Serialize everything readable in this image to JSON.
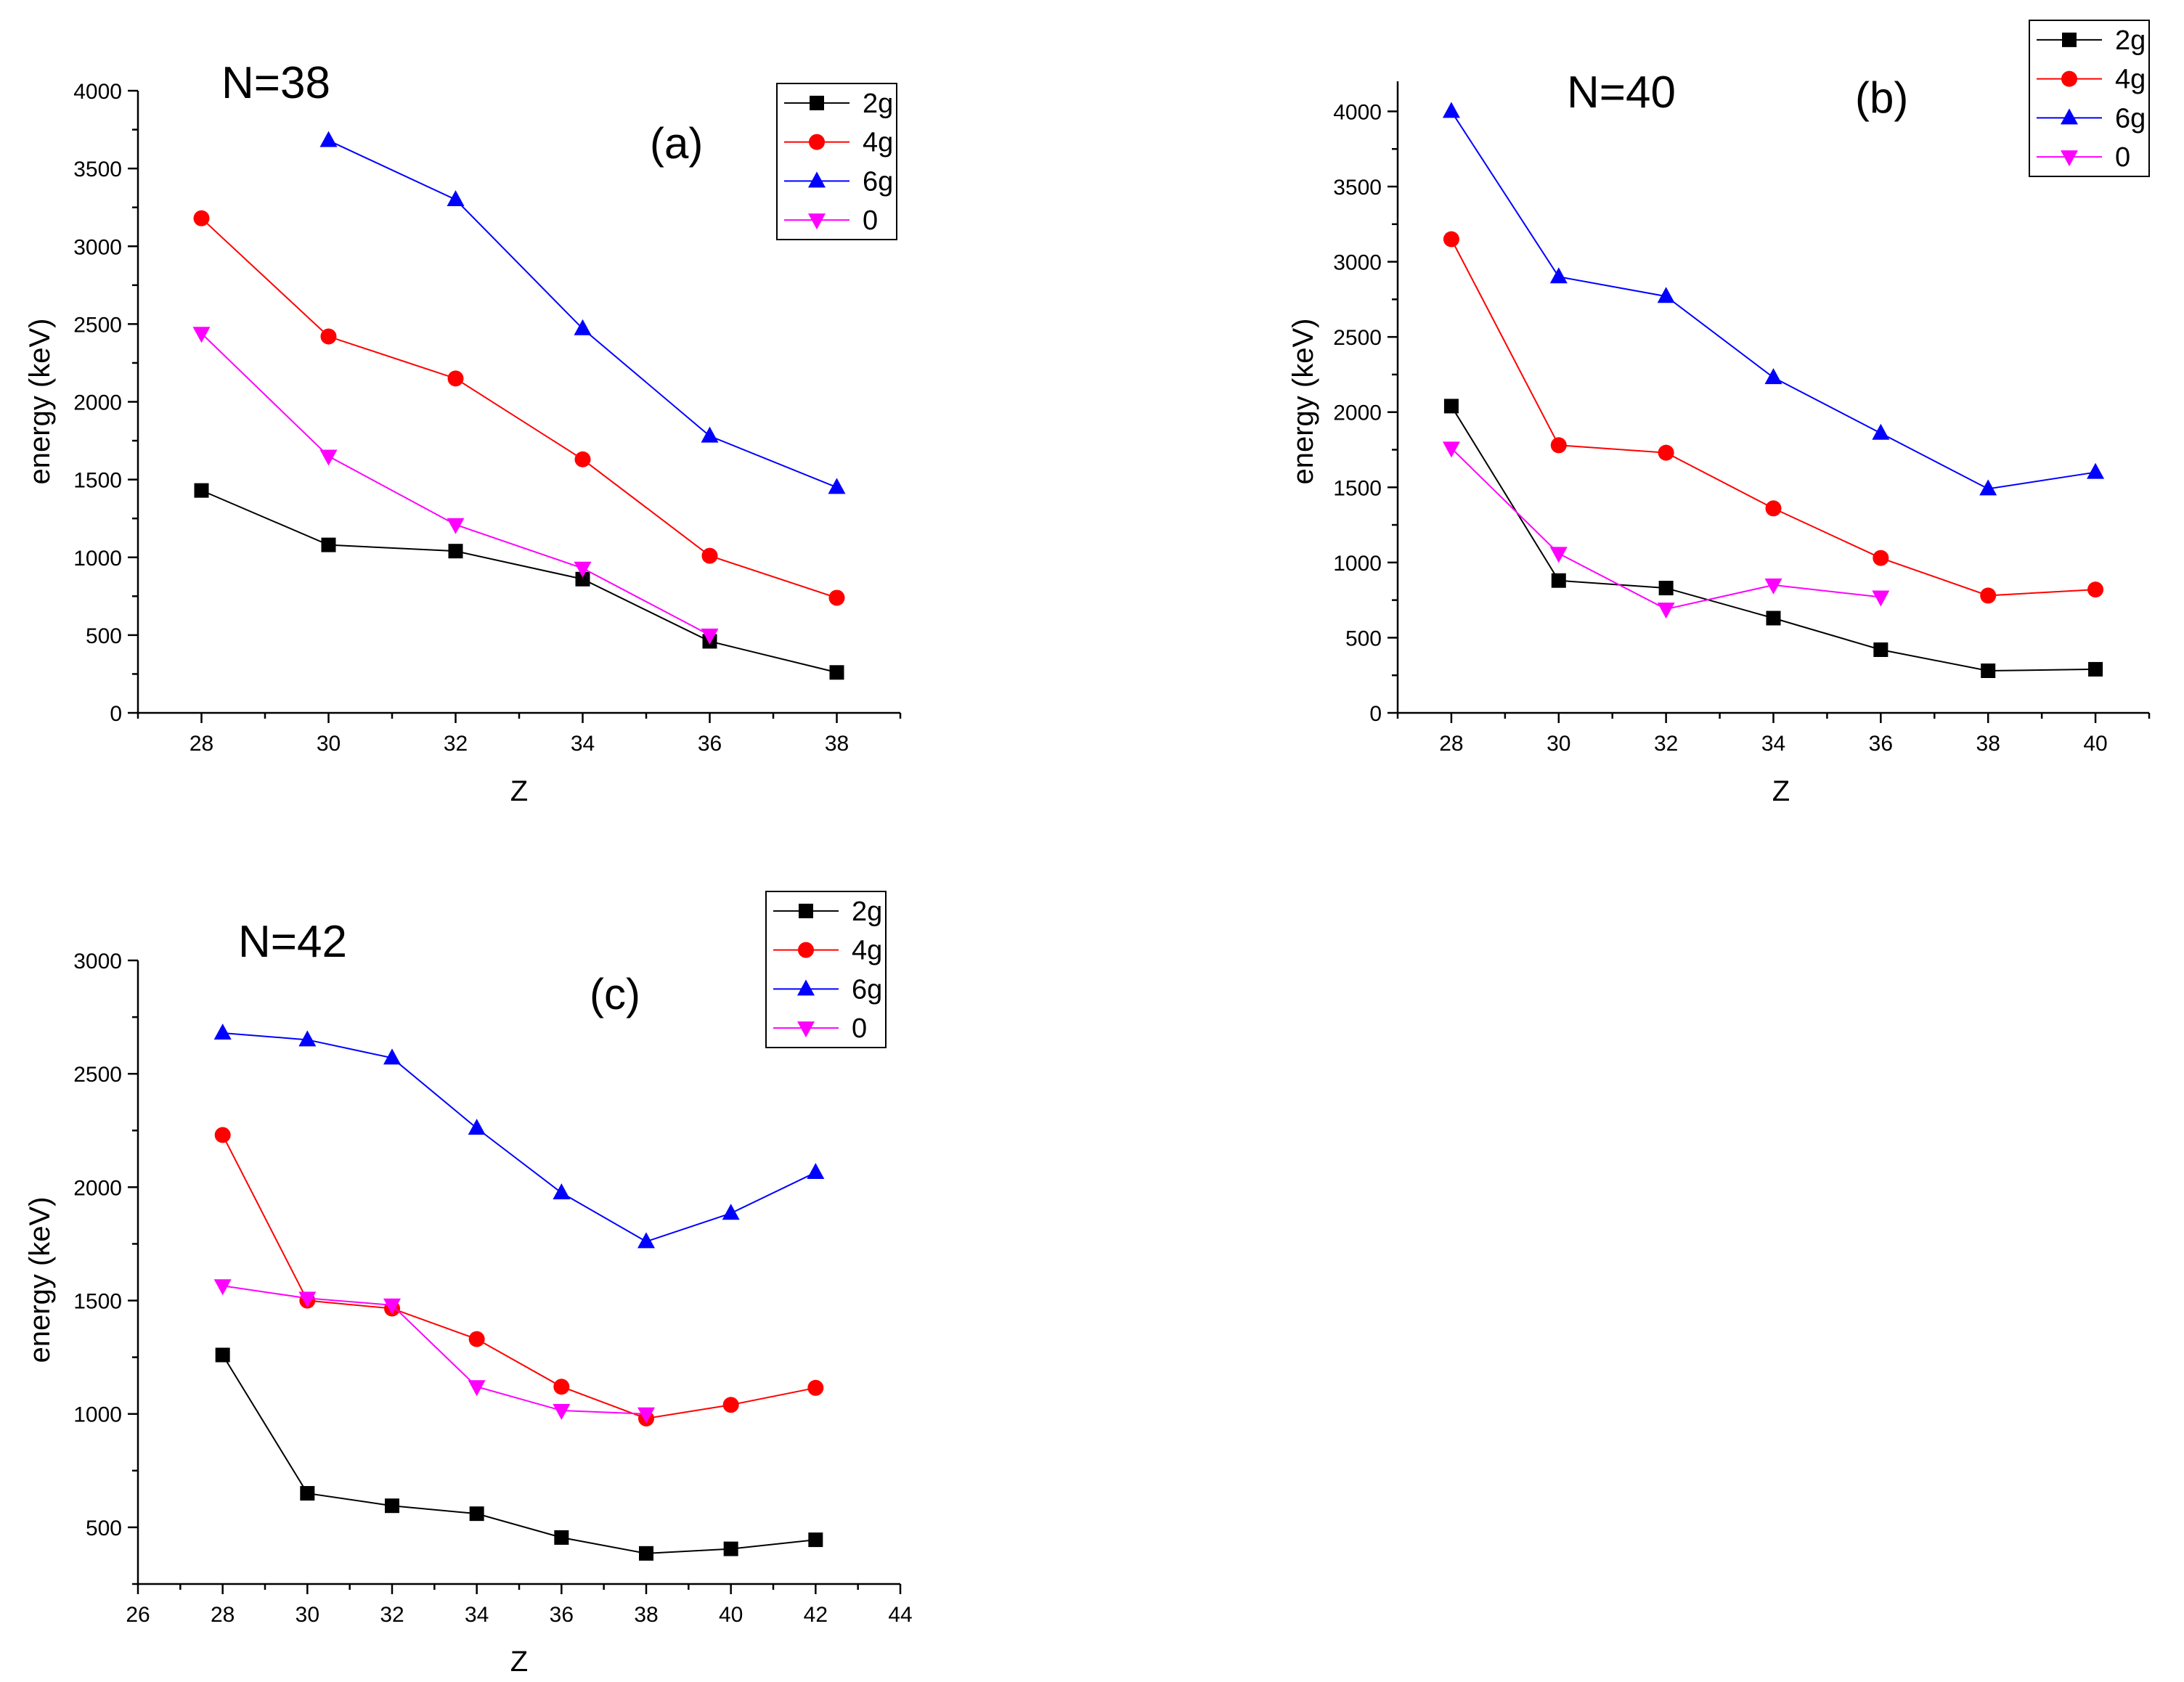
{
  "colors": {
    "2g": "#000000",
    "4g": "#ff0000",
    "6g": "#0000ff",
    "0": "#ff00ff"
  },
  "chart_data": [
    {
      "type": "line",
      "title": "N=38",
      "label": "(a)",
      "xlabel": "Z",
      "ylabel": "energy (keV)",
      "xlim": [
        27,
        39
      ],
      "ylim": [
        0,
        4000
      ],
      "xticks": [
        28,
        30,
        32,
        34,
        36,
        38
      ],
      "yticks": [
        0,
        500,
        1000,
        1500,
        2000,
        2500,
        3000,
        3500,
        4000
      ],
      "xticks_labels": [
        "28",
        "30",
        "32",
        "34",
        "36",
        "38"
      ],
      "yticks_labels": [
        "0",
        "500",
        "1000",
        "1500",
        "2000",
        "2500",
        "3000",
        "3500",
        "4000"
      ],
      "legend_position": "top-right",
      "series": [
        {
          "name": "2g",
          "marker": "square",
          "color": "#000000",
          "points": [
            [
              28,
              1430
            ],
            [
              30,
              1080
            ],
            [
              32,
              1040
            ],
            [
              34,
              860
            ],
            [
              36,
              460
            ],
            [
              38,
              260
            ]
          ]
        },
        {
          "name": "4g",
          "marker": "circle",
          "color": "#ff0000",
          "points": [
            [
              28,
              3180
            ],
            [
              30,
              2420
            ],
            [
              32,
              2150
            ],
            [
              34,
              1630
            ],
            [
              36,
              1010
            ],
            [
              38,
              740
            ]
          ]
        },
        {
          "name": "6g",
          "marker": "triangle-up",
          "color": "#0000ff",
          "points": [
            [
              30,
              3680
            ],
            [
              32,
              3300
            ],
            [
              34,
              2470
            ],
            [
              36,
              1780
            ],
            [
              38,
              1450
            ]
          ]
        },
        {
          "name": "0",
          "marker": "triangle-down",
          "color": "#ff00ff",
          "points": [
            [
              28,
              2440
            ],
            [
              30,
              1650
            ],
            [
              32,
              1210
            ],
            [
              34,
              930
            ],
            [
              36,
              500
            ]
          ]
        }
      ]
    },
    {
      "type": "line",
      "title": "N=40",
      "label": "(b)",
      "xlabel": "Z",
      "ylabel": "energy (keV)",
      "xlim": [
        27,
        41
      ],
      "ylim": [
        0,
        4200
      ],
      "xticks": [
        28,
        30,
        32,
        34,
        36,
        38,
        40
      ],
      "yticks": [
        0,
        500,
        1000,
        1500,
        2000,
        2500,
        3000,
        3500,
        4000
      ],
      "xticks_labels": [
        "28",
        "30",
        "32",
        "34",
        "36",
        "38",
        "40"
      ],
      "yticks_labels": [
        "0",
        "500",
        "1000",
        "1500",
        "2000",
        "2500",
        "3000",
        "3500",
        "4000"
      ],
      "legend_position": "top-right",
      "series": [
        {
          "name": "2g",
          "marker": "square",
          "color": "#000000",
          "points": [
            [
              28,
              2040
            ],
            [
              30,
              880
            ],
            [
              32,
              830
            ],
            [
              34,
              630
            ],
            [
              36,
              420
            ],
            [
              38,
              280
            ],
            [
              40,
              290
            ]
          ]
        },
        {
          "name": "4g",
          "marker": "circle",
          "color": "#ff0000",
          "points": [
            [
              28,
              3150
            ],
            [
              30,
              1780
            ],
            [
              32,
              1730
            ],
            [
              34,
              1360
            ],
            [
              36,
              1030
            ],
            [
              38,
              780
            ],
            [
              40,
              820
            ]
          ]
        },
        {
          "name": "6g",
          "marker": "triangle-up",
          "color": "#0000ff",
          "points": [
            [
              28,
              4000
            ],
            [
              30,
              2900
            ],
            [
              32,
              2770
            ],
            [
              34,
              2230
            ],
            [
              36,
              1860
            ],
            [
              38,
              1490
            ],
            [
              40,
              1600
            ]
          ]
        },
        {
          "name": "0",
          "marker": "triangle-down",
          "color": "#ff00ff",
          "points": [
            [
              28,
              1760
            ],
            [
              30,
              1060
            ],
            [
              32,
              690
            ],
            [
              34,
              850
            ],
            [
              36,
              770
            ]
          ]
        }
      ]
    },
    {
      "type": "line",
      "title": "N=42",
      "label": "(c)",
      "xlabel": "Z",
      "ylabel": "energy (keV)",
      "xlim": [
        26,
        44
      ],
      "ylim": [
        250,
        3000
      ],
      "xticks": [
        26,
        28,
        30,
        32,
        34,
        36,
        38,
        40,
        42,
        44
      ],
      "yticks": [
        500,
        1000,
        1500,
        2000,
        2500,
        3000
      ],
      "xticks_labels": [
        "26",
        "28",
        "30",
        "32",
        "34",
        "36",
        "38",
        "40",
        "42",
        "44"
      ],
      "yticks_labels": [
        "500",
        "1000",
        "1500",
        "2000",
        "2500",
        "3000"
      ],
      "legend_position": "top-right",
      "series": [
        {
          "name": "2g",
          "marker": "square",
          "color": "#000000",
          "points": [
            [
              28,
              1260
            ],
            [
              30,
              650
            ],
            [
              32,
              595
            ],
            [
              34,
              560
            ],
            [
              36,
              455
            ],
            [
              38,
              385
            ],
            [
              40,
              405
            ],
            [
              42,
              445
            ]
          ]
        },
        {
          "name": "4g",
          "marker": "circle",
          "color": "#ff0000",
          "points": [
            [
              28,
              2230
            ],
            [
              30,
              1500
            ],
            [
              32,
              1465
            ],
            [
              34,
              1330
            ],
            [
              36,
              1120
            ],
            [
              38,
              980
            ],
            [
              40,
              1040
            ],
            [
              42,
              1115
            ]
          ]
        },
        {
          "name": "6g",
          "marker": "triangle-up",
          "color": "#0000ff",
          "points": [
            [
              28,
              2680
            ],
            [
              30,
              2650
            ],
            [
              32,
              2570
            ],
            [
              34,
              2260
            ],
            [
              36,
              1975
            ],
            [
              38,
              1760
            ],
            [
              40,
              1885
            ],
            [
              42,
              2065
            ]
          ]
        },
        {
          "name": "0",
          "marker": "triangle-down",
          "color": "#ff00ff",
          "points": [
            [
              28,
              1565
            ],
            [
              30,
              1510
            ],
            [
              32,
              1480
            ],
            [
              34,
              1120
            ],
            [
              36,
              1015
            ],
            [
              38,
              1000
            ]
          ]
        }
      ]
    }
  ]
}
